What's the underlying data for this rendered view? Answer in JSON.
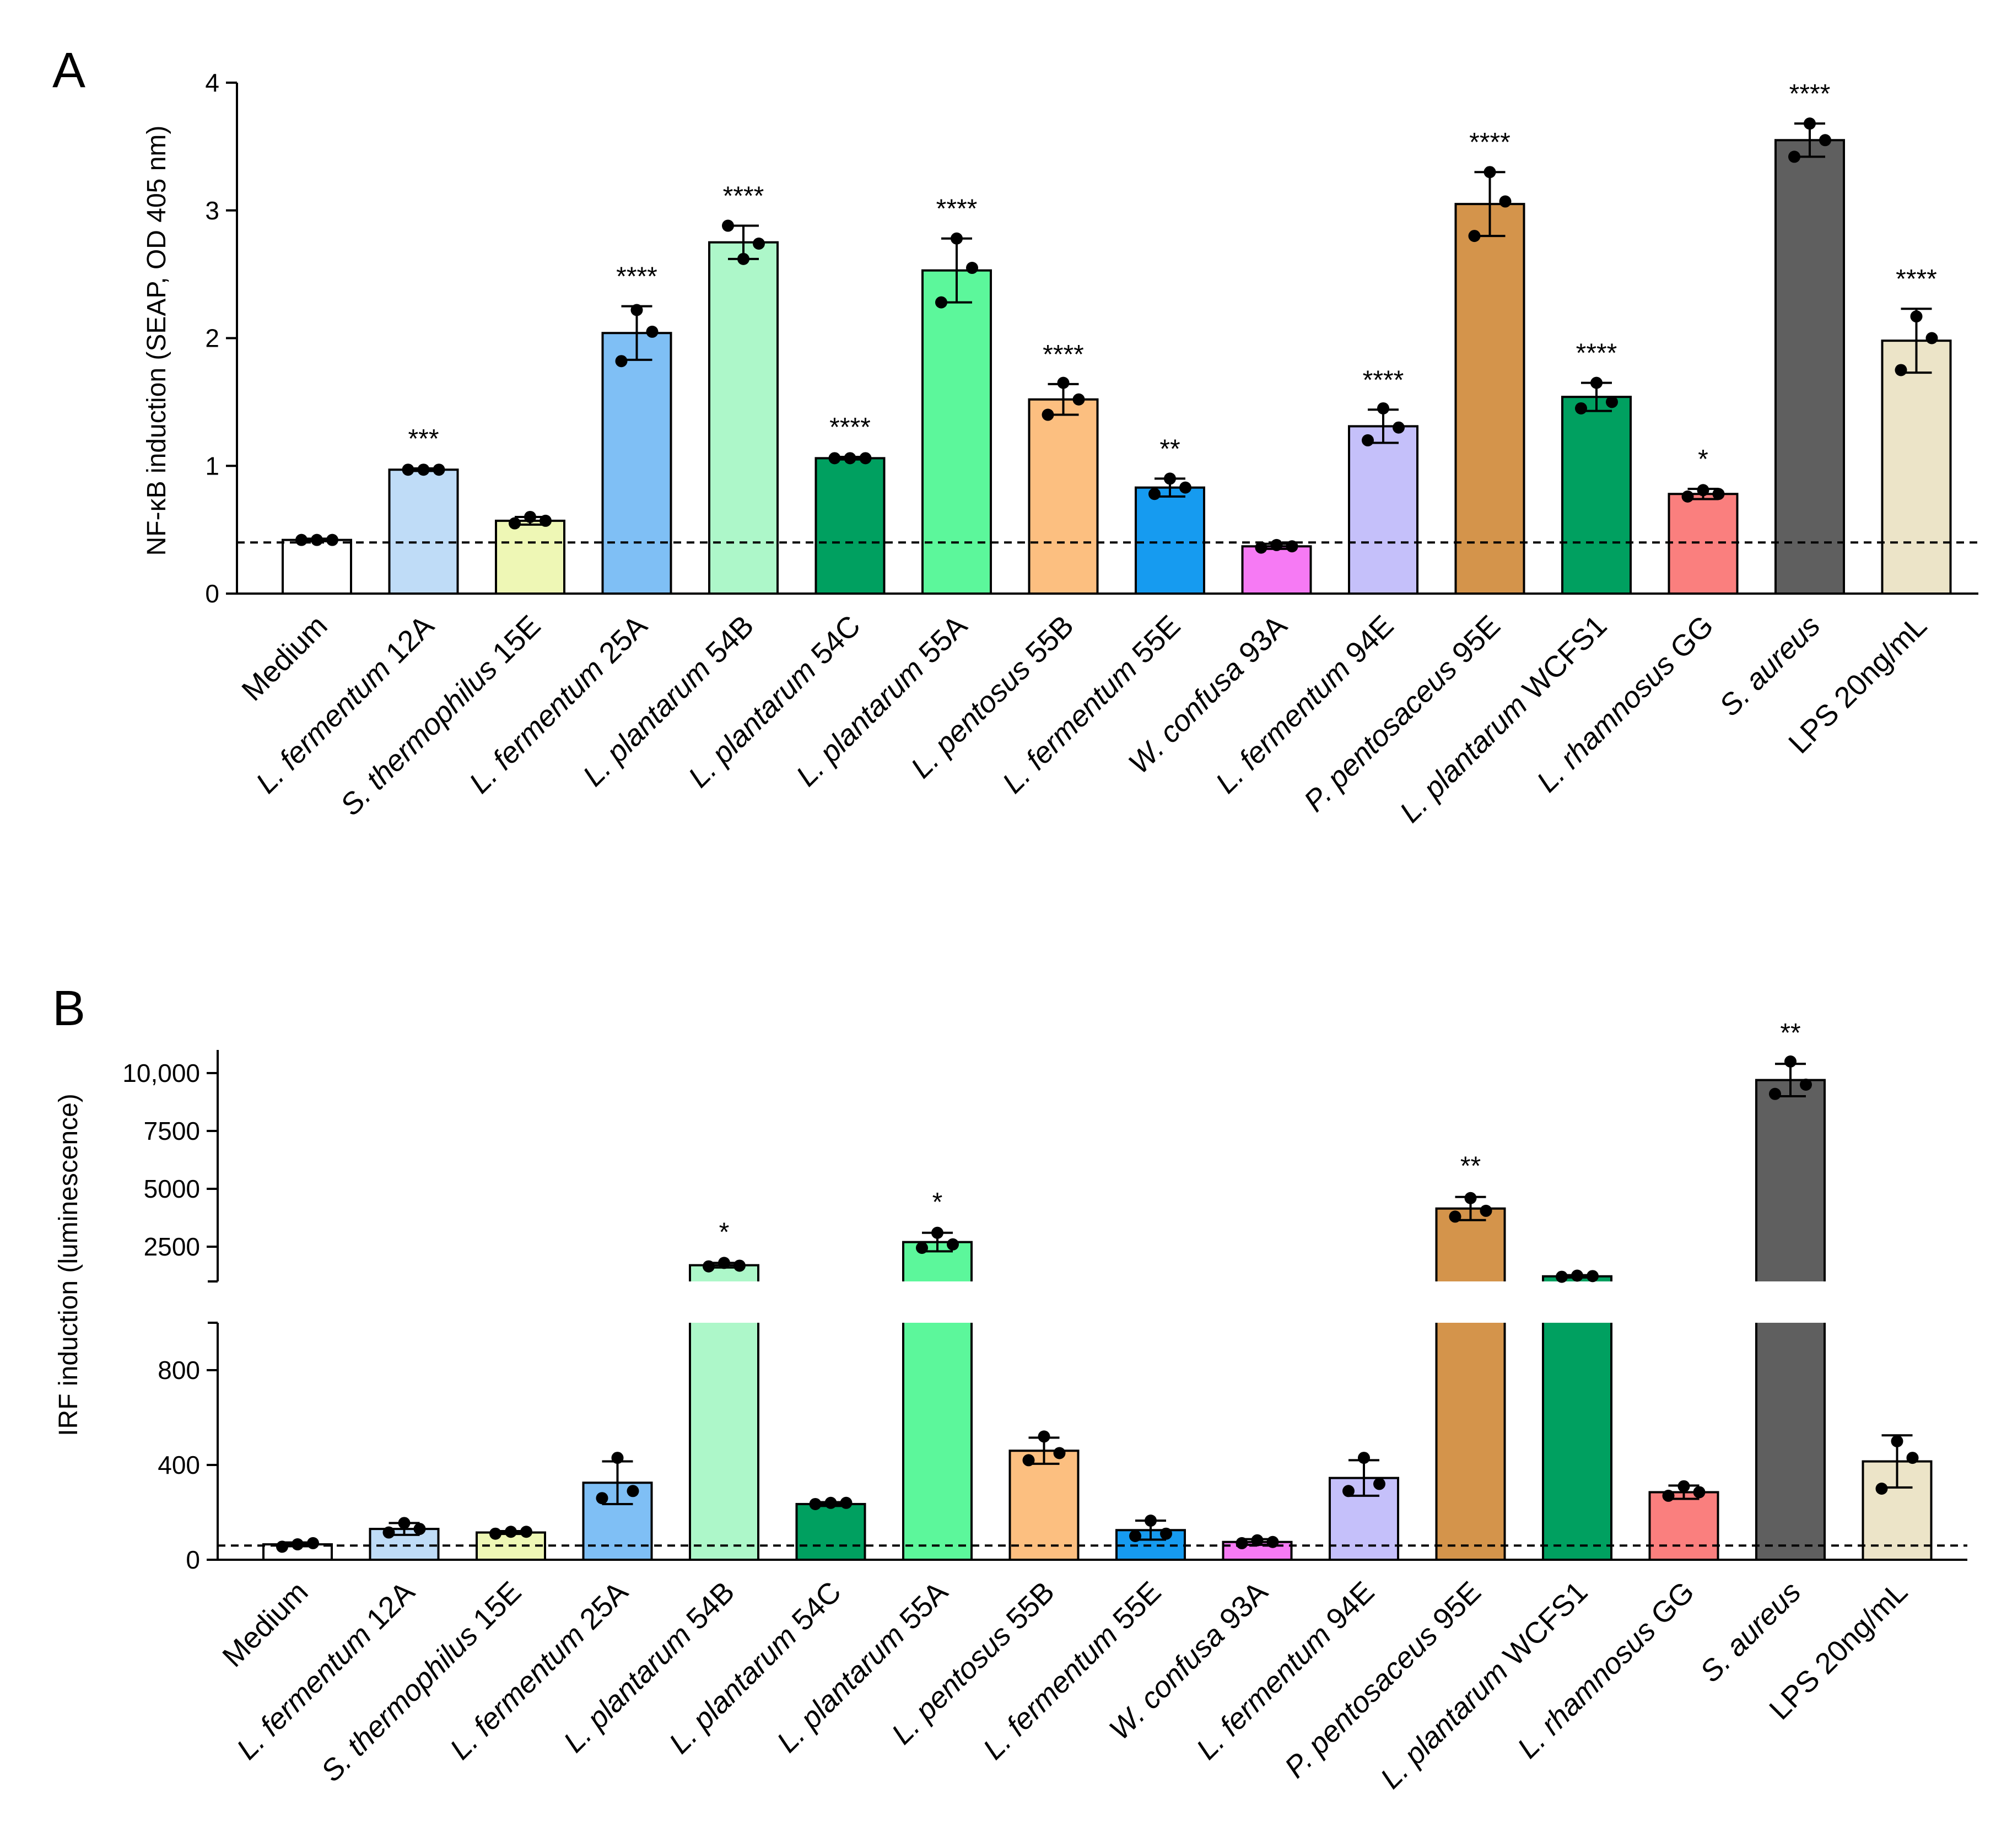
{
  "chart_data": [
    {
      "panel": "A",
      "type": "bar",
      "ylabel": "NF-κB induction (SEAP, OD 405 nm)",
      "ylim": [
        0,
        4
      ],
      "yticks": [
        0,
        1,
        2,
        3,
        4
      ],
      "baseline": 0.4,
      "categories": [
        {
          "label": "Medium",
          "italic": "",
          "rest": "Medium"
        },
        {
          "label": "L. fermentum 12A",
          "italic": "L. fermentum",
          "rest": " 12A"
        },
        {
          "label": "S. thermophilus 15E",
          "italic": "S. thermophilus",
          "rest": " 15E"
        },
        {
          "label": "L. fermentum 25A",
          "italic": "L. fermentum",
          "rest": " 25A"
        },
        {
          "label": "L. plantarum 54B",
          "italic": "L. plantarum",
          "rest": " 54B"
        },
        {
          "label": "L. plantarum 54C",
          "italic": "L. plantarum",
          "rest": " 54C"
        },
        {
          "label": "L. plantarum 55A",
          "italic": "L. plantarum",
          "rest": " 55A"
        },
        {
          "label": "L. pentosus 55B",
          "italic": "L. pentosus",
          "rest": " 55B"
        },
        {
          "label": "L. fermentum 55E",
          "italic": "L. fermentum",
          "rest": " 55E"
        },
        {
          "label": "W. confusa 93A",
          "italic": "W. confusa",
          "rest": " 93A"
        },
        {
          "label": "L. fermentum 94E",
          "italic": "L. fermentum",
          "rest": " 94E"
        },
        {
          "label": "P. pentosaceus 95E",
          "italic": "P. pentosaceus",
          "rest": " 95E"
        },
        {
          "label": "L. plantarum WCFS1",
          "italic": "L. plantarum",
          "rest": " WCFS1"
        },
        {
          "label": "L. rhamnosus GG",
          "italic": "L. rhamnosus",
          "rest": " GG"
        },
        {
          "label": "S. aureus",
          "italic": "S. aureus",
          "rest": ""
        },
        {
          "label": "LPS 20ng/mL",
          "italic": "",
          "rest": "LPS 20ng/mL"
        }
      ],
      "values": [
        0.42,
        0.97,
        0.57,
        2.04,
        2.75,
        1.06,
        2.53,
        1.52,
        0.83,
        0.37,
        1.31,
        3.05,
        1.54,
        0.78,
        3.55,
        1.98
      ],
      "errors": [
        0.01,
        0.01,
        0.03,
        0.21,
        0.13,
        0.01,
        0.25,
        0.12,
        0.07,
        0.02,
        0.13,
        0.25,
        0.11,
        0.04,
        0.13,
        0.25
      ],
      "points": [
        [
          0.42,
          0.42,
          0.42
        ],
        [
          0.97,
          0.97,
          0.97
        ],
        [
          0.55,
          0.6,
          0.57
        ],
        [
          1.82,
          2.22,
          2.05
        ],
        [
          2.88,
          2.62,
          2.74
        ],
        [
          1.06,
          1.06,
          1.06
        ],
        [
          2.28,
          2.78,
          2.55
        ],
        [
          1.4,
          1.65,
          1.52
        ],
        [
          0.78,
          0.9,
          0.83
        ],
        [
          0.36,
          0.38,
          0.37
        ],
        [
          1.2,
          1.45,
          1.3
        ],
        [
          2.8,
          3.3,
          3.07
        ],
        [
          1.45,
          1.65,
          1.5
        ],
        [
          0.76,
          0.81,
          0.78
        ],
        [
          3.42,
          3.68,
          3.55
        ],
        [
          1.75,
          2.17,
          2.0
        ]
      ],
      "significance": [
        "",
        "***",
        "",
        "****",
        "****",
        "****",
        "****",
        "****",
        "**",
        "",
        "****",
        "****",
        "****",
        "*",
        "****",
        "****"
      ]
    },
    {
      "panel": "B",
      "type": "bar",
      "ylabel": "IRF induction (luminescence)",
      "y_axis_break": {
        "lower_range": [
          0,
          1000
        ],
        "upper_range": [
          1000,
          11000
        ]
      },
      "yticks_lower": [
        0,
        400,
        800
      ],
      "yticks_lower_labels": [
        "0",
        "400",
        "800"
      ],
      "yticks_upper": [
        2500,
        5000,
        7500,
        10000
      ],
      "yticks_upper_labels": [
        "2500",
        "5000",
        "7500",
        "10,000"
      ],
      "baseline": 60,
      "values": [
        65,
        130,
        115,
        325,
        1700,
        235,
        2700,
        460,
        125,
        75,
        345,
        4150,
        1220,
        285,
        9700,
        415
      ],
      "errors": [
        8,
        25,
        6,
        90,
        100,
        8,
        400,
        55,
        40,
        12,
        75,
        500,
        50,
        28,
        700,
        110
      ],
      "points": [
        [
          55,
          65,
          70
        ],
        [
          115,
          155,
          130
        ],
        [
          110,
          118,
          118
        ],
        [
          260,
          430,
          290
        ],
        [
          1650,
          1800,
          1680
        ],
        [
          235,
          240,
          240
        ],
        [
          2450,
          3100,
          2600
        ],
        [
          420,
          520,
          450
        ],
        [
          100,
          165,
          110
        ],
        [
          70,
          82,
          75
        ],
        [
          290,
          430,
          320
        ],
        [
          3800,
          4600,
          4050
        ],
        [
          1200,
          1250,
          1230
        ],
        [
          270,
          310,
          285
        ],
        [
          9100,
          10500,
          9500
        ],
        [
          300,
          500,
          430
        ]
      ],
      "significance": [
        "",
        "",
        "",
        "",
        "*",
        "",
        "*",
        "",
        "",
        "",
        "",
        "**",
        "",
        "",
        "**",
        ""
      ]
    }
  ],
  "bar_colors": [
    "#ffffff",
    "#bfdcf7",
    "#eef7b5",
    "#7fbff5",
    "#adf7c9",
    "#00a060",
    "#5cf79b",
    "#fcbf80",
    "#169bf0",
    "#f67af4",
    "#c5c0fa",
    "#d4944b",
    "#00a060",
    "#fa7f7e",
    "#5f5f5f",
    "#ece4c8"
  ]
}
